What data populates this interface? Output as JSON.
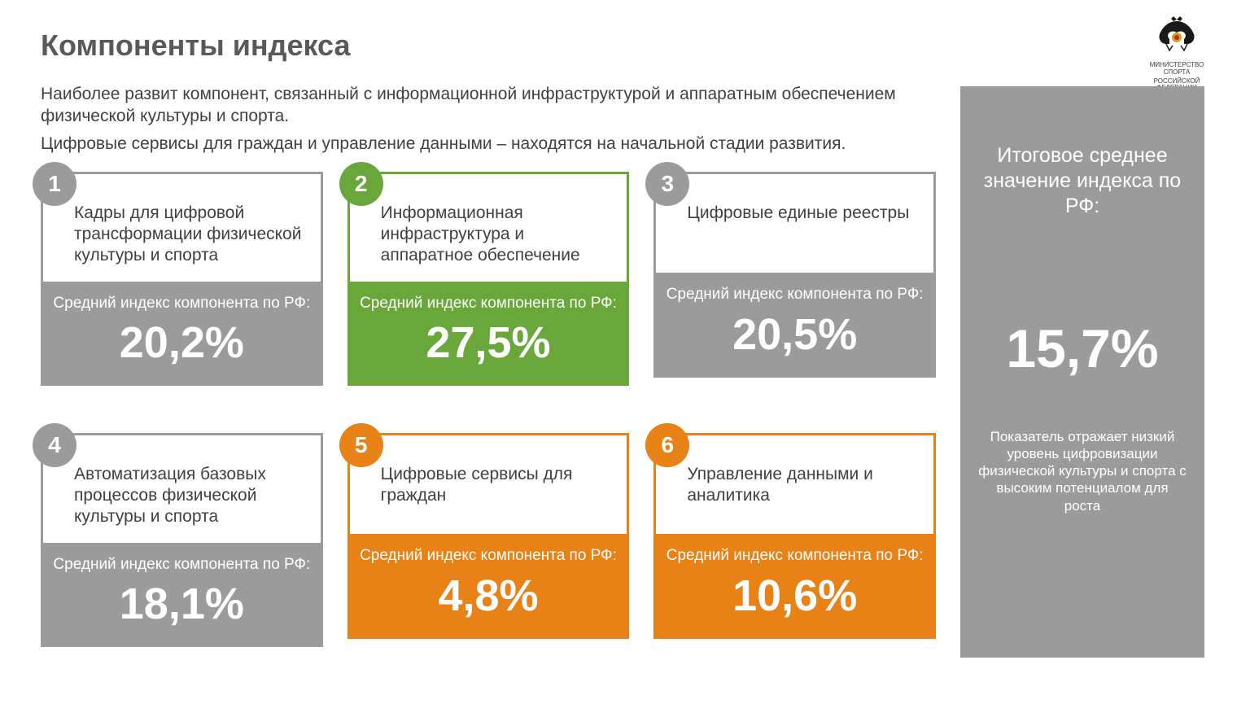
{
  "title": "Компоненты индекса",
  "intro1": "Наиболее развит компонент, связанный с информационной инфраструктурой и аппаратным обеспечением физической культуры и спорта.",
  "intro2": "Цифровые сервисы для граждан и управление данными – находятся на начальной стадии развития.",
  "logo_line1": "МИНИСТЕРСТВО СПОРТА",
  "logo_line2": "РОССИЙСКОЙ ФЕДЕРАЦИИ",
  "sublabel": "Средний индекс компонента по РФ:",
  "colors": {
    "gray": "#9b9b9b",
    "green": "#6aa73b",
    "orange": "#e88116",
    "summary_bg": "#9b9b9b",
    "text_dark": "#404040",
    "title": "#595959"
  },
  "cards": [
    {
      "num": "1",
      "label": "Кадры для цифровой трансформации физической культуры и спорта",
      "value": "20,2%",
      "color": "#9b9b9b"
    },
    {
      "num": "2",
      "label": "Информационная инфраструктура и аппаратное обеспечение",
      "value": "27,5%",
      "color": "#6aa73b"
    },
    {
      "num": "3",
      "label": "Цифровые единые реестры",
      "value": "20,5%",
      "color": "#9b9b9b"
    },
    {
      "num": "4",
      "label": "Автоматизация базовых процессов физической культуры и спорта",
      "value": "18,1%",
      "color": "#9b9b9b"
    },
    {
      "num": "5",
      "label": "Цифровые сервисы для граждан",
      "value": "4,8%",
      "color": "#e88116"
    },
    {
      "num": "6",
      "label": "Управление данными и аналитика",
      "value": "10,6%",
      "color": "#e88116"
    }
  ],
  "summary": {
    "title": "Итоговое среднее значение индекса по РФ:",
    "value": "15,7%",
    "note": "Показатель отражает низкий уровень цифровизации физической культуры и спорта с высоким потенциалом для роста",
    "bg": "#9b9b9b"
  }
}
